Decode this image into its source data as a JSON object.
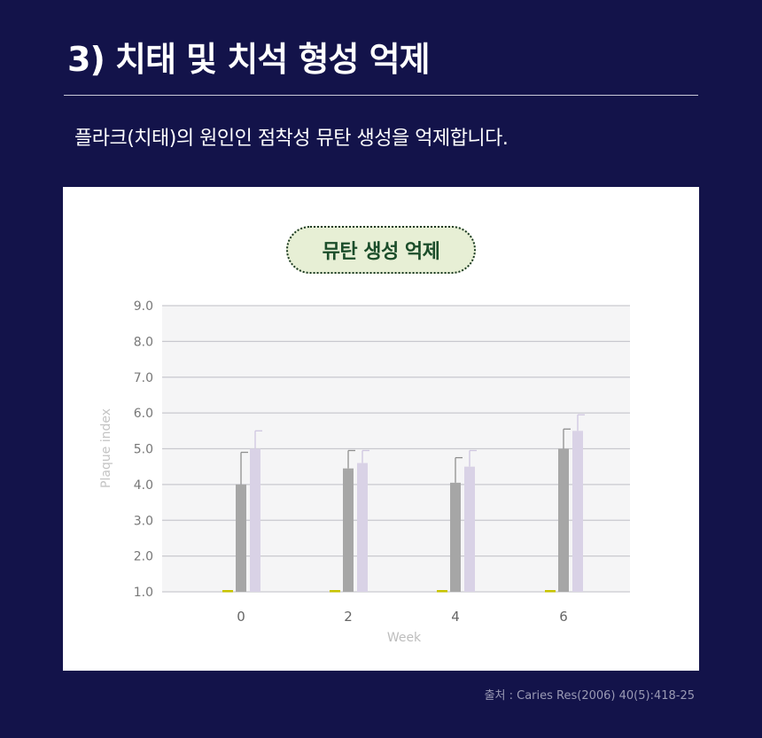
{
  "header": {
    "title": "3) 치태 및 치석 형성 억제",
    "subtitle": "플라크(치태)의 원인인 점착성 뮤탄 생성을 억제합니다."
  },
  "footer": {
    "source": "출처 : Caries Res(2006) 40(5):418-25"
  },
  "colors": {
    "background": "#13134a",
    "bar_series_1": "#a6a6a6",
    "bar_series_2": "#d9d2e6",
    "marker": "#c8c400",
    "pill_fill": "#e7efd5",
    "pill_text": "#1b4d2a"
  },
  "chart_data": {
    "type": "bar",
    "title": "뮤탄 생성 억제",
    "xlabel": "Week",
    "ylabel": "Plaque index",
    "categories": [
      "0",
      "2",
      "4",
      "6"
    ],
    "y_ticks": [
      "1.0",
      "2.0",
      "3.0",
      "4.0",
      "5.0",
      "6.0",
      "7.0",
      "8.0",
      "9.0"
    ],
    "ylim": [
      1.0,
      9.0
    ],
    "grid": true,
    "series": [
      {
        "values": [
          1.0,
          1.0,
          1.0,
          1.0
        ],
        "errors": [
          0,
          0,
          0,
          0
        ]
      },
      {
        "values": [
          4.0,
          4.45,
          4.05,
          5.0
        ],
        "errors": [
          0.9,
          0.5,
          0.7,
          0.55
        ]
      },
      {
        "values": [
          5.0,
          4.6,
          4.5,
          5.5
        ],
        "errors": [
          0.5,
          0.35,
          0.45,
          0.45
        ]
      }
    ]
  }
}
